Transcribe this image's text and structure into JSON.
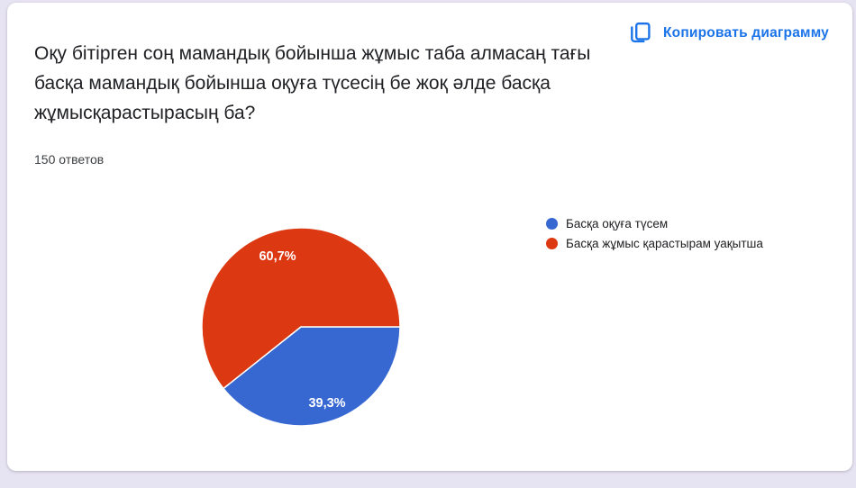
{
  "window": {
    "background_color": "#e6e3f2",
    "card_background": "#ffffff"
  },
  "card": {
    "question": "Оқу бітірген соң мамандық бойынша жұмыс таба алмасаң тағы басқа мамандық бойынша оқуға түсесің бе жоқ әлде басқа жұмысқарастырасың ба?",
    "responses_count": "150 ответов"
  },
  "toolbar": {
    "copy_button_label": "Копировать диаграмму",
    "copy_icon": "copy-icon",
    "accent_color": "#1a73e8"
  },
  "chart_data": {
    "type": "pie",
    "title": "Оқу бітірген соң мамандық бойынша жұмыс таба алмасаң тағы басқа мамандық бойынша оқуға түсесің бе жоқ әлде басқа жұмысқарастырасың ба?",
    "categories": [
      "Басқа оқуға түсем",
      "Басқа жұмыс қарастырам уақытша"
    ],
    "values": [
      39.3,
      60.7
    ],
    "value_labels": [
      "39,3%",
      "60,7%"
    ],
    "colors": [
      "#3768d2",
      "#dc3912"
    ],
    "total_responses": 150,
    "legend_position": "right",
    "first_slice_start": "3-oclock-clockwise",
    "slice_border_color": "#ffffff"
  },
  "legend": {
    "items": [
      {
        "label": "Басқа оқуға түсем",
        "color": "#3768d2"
      },
      {
        "label": "Басқа жұмыс қарастырам уақытша",
        "color": "#dc3912"
      }
    ]
  }
}
